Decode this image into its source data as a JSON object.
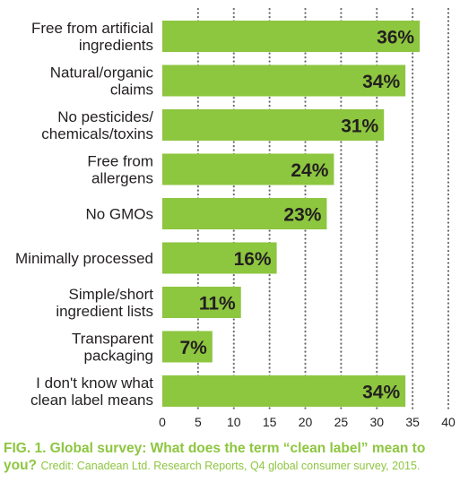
{
  "chart_data": {
    "type": "bar",
    "orientation": "horizontal",
    "categories": [
      [
        "Free from artificial",
        "ingredients"
      ],
      [
        "Natural/organic",
        "claims"
      ],
      [
        "No pesticides/",
        "chemicals/toxins"
      ],
      [
        "Free from",
        "allergens"
      ],
      [
        "No GMOs"
      ],
      [
        "Minimally processed"
      ],
      [
        "Simple/short",
        "ingredient lists"
      ],
      [
        "Transparent",
        "packaging"
      ],
      [
        "I don't know what",
        "clean label means"
      ]
    ],
    "values": [
      36,
      34,
      31,
      24,
      23,
      16,
      11,
      7,
      34
    ],
    "value_labels": [
      "36%",
      "34%",
      "31%",
      "24%",
      "23%",
      "16%",
      "11%",
      "7%",
      "34%"
    ],
    "xticks": [
      "0",
      "5",
      "10",
      "15",
      "20",
      "25",
      "30",
      "35",
      "40"
    ],
    "xlim": [
      0,
      40
    ],
    "grid": "vertical dotted",
    "bar_color": "#8dc63f",
    "text_color": "#231f20",
    "grid_color": "#6d6e71"
  },
  "caption": {
    "title": "FIG. 1. Global survey: What does the term “clean label” mean to you?",
    "credit": "Credit: Canadean Ltd. Research Reports, Q4 global consumer survey, 2015.",
    "color": "#8dc63f"
  }
}
